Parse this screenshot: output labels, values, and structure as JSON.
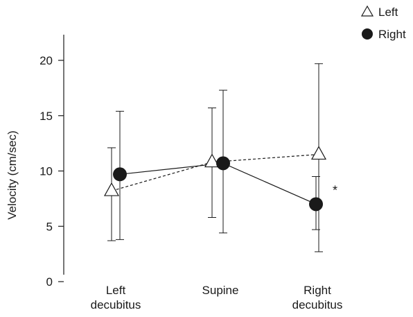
{
  "chart_data": {
    "type": "line",
    "title": "",
    "xlabel": "",
    "ylabel": "Velocity (cm/sec)",
    "ylim": [
      0,
      20
    ],
    "yticks": [
      0,
      5,
      10,
      15,
      20
    ],
    "grid": false,
    "legend_position": "top-right",
    "categories": [
      [
        "Left",
        "decubitus"
      ],
      [
        "Supine"
      ],
      [
        "Right",
        "decubitus"
      ]
    ],
    "series": [
      {
        "name": "Left",
        "marker": "open-triangle",
        "line_style": "dashed",
        "color": "#1a1a1a",
        "values": [
          8.2,
          10.8,
          11.5
        ],
        "error_low": [
          3.7,
          5.8,
          2.7
        ],
        "error_high": [
          12.1,
          15.7,
          19.7
        ]
      },
      {
        "name": "Right",
        "marker": "filled-circle",
        "line_style": "solid",
        "color": "#1a1a1a",
        "values": [
          9.7,
          10.7,
          7.0
        ],
        "error_low": [
          3.8,
          4.4,
          4.7
        ],
        "error_high": [
          15.4,
          17.3,
          9.5
        ]
      }
    ],
    "annotations": [
      {
        "text": "*",
        "category_index": 2,
        "y": 7.5
      }
    ]
  }
}
